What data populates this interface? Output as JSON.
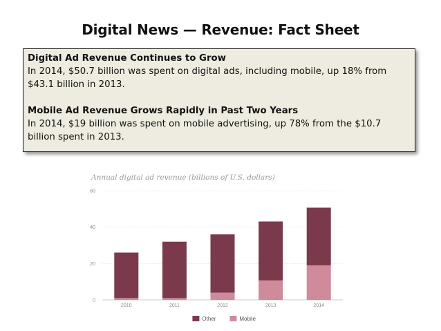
{
  "slide": {
    "title": "Digital News — Revenue: Fact Sheet"
  },
  "fact_box": {
    "section1_heading": "Digital Ad Revenue Continues to Grow",
    "section1_line1": "In 2014, $50.7 billion was spent on digital ads, including mobile, up 18% from",
    "section1_line2": "$43.1 billion in 2013.",
    "section2_heading": "Mobile Ad Revenue Grows Rapidly in Past Two Years",
    "section2_line1": "In 2014, $19 billion was spent on mobile advertising, up 78% from the $10.7",
    "section2_line2": "billion spent in 2013."
  },
  "colors": {
    "other": "#7b3a4c",
    "mobile": "#cf8a9b",
    "gridline": "#dddddd",
    "axis": "#bbbbbb",
    "fact_box_bg": "#eeece0"
  },
  "chart_data": {
    "type": "bar",
    "stacked": true,
    "title": "Annual digital ad revenue (billions of U.S. dollars)",
    "xlabel": "",
    "ylabel": "",
    "categories": [
      "2010",
      "2011",
      "2012",
      "2013",
      "2014"
    ],
    "series": [
      {
        "name": "Mobile",
        "values": [
          1.0,
          1.0,
          4.0,
          10.7,
          19.0
        ]
      },
      {
        "name": "Other",
        "values": [
          25.0,
          31.0,
          32.0,
          32.4,
          31.7
        ]
      }
    ],
    "legend_order": [
      "Other",
      "Mobile"
    ],
    "legend_position": "bottom",
    "ylim": [
      0,
      60
    ],
    "yticks": [
      0,
      20,
      40,
      60
    ],
    "grid": true
  }
}
